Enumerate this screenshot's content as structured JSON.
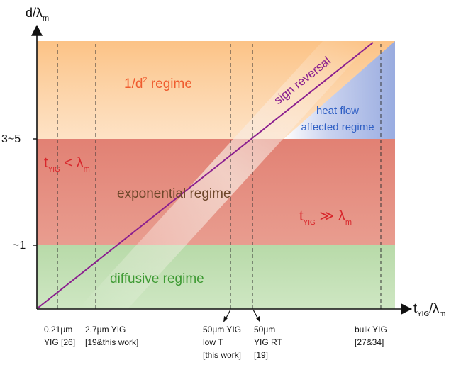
{
  "axes": {
    "y_label": {
      "main": "d/λ",
      "sub": "m"
    },
    "x_label": {
      "main": "t",
      "sub1": "YIG",
      "mid": "/λ",
      "sub2": "m"
    },
    "y_ticks": {
      "upper": "3~5",
      "lower": "~1"
    }
  },
  "regimes": {
    "inverse_square": {
      "prefix": "1/d",
      "sup": "2",
      "suffix": " regime",
      "color": "#ef5b2e"
    },
    "heat_flow": {
      "line1": "heat flow",
      "line2": "affected regime",
      "color": "#2f5fc4"
    },
    "exponential": {
      "text": "exponential regime",
      "color": "#6d4629"
    },
    "diffusive": {
      "text": "diffusive regime",
      "color": "#3e9a33"
    },
    "thin_condition": {
      "t": "t",
      "sub1": "YIG",
      "op": " < λ",
      "sub2": "m",
      "color": "#d8262b"
    },
    "thick_condition": {
      "t": "t",
      "sub1": "YIG",
      "op": " ≫ λ",
      "sub2": "m",
      "color": "#d8262b"
    }
  },
  "sign_reversal": {
    "label": "sign reversal",
    "color": "#8b1f8f"
  },
  "markers": [
    {
      "lines": [
        "0.21μm",
        "YIG [26]"
      ]
    },
    {
      "lines": [
        "2.7μm YIG",
        "[19&this work]"
      ]
    },
    {
      "lines": [
        "50μm YIG",
        "low T",
        "[this work]"
      ]
    },
    {
      "lines": [
        "50μm",
        "YIG RT",
        "[19]"
      ]
    },
    {
      "lines": [
        "bulk YIG",
        "[27&34]"
      ]
    }
  ],
  "colors": {
    "orange_band": "#fbc78d",
    "red_band": "#e5857a",
    "green_band": "#bcdcae",
    "blue_corner": "#9fb3e6",
    "axis": "#111111"
  }
}
